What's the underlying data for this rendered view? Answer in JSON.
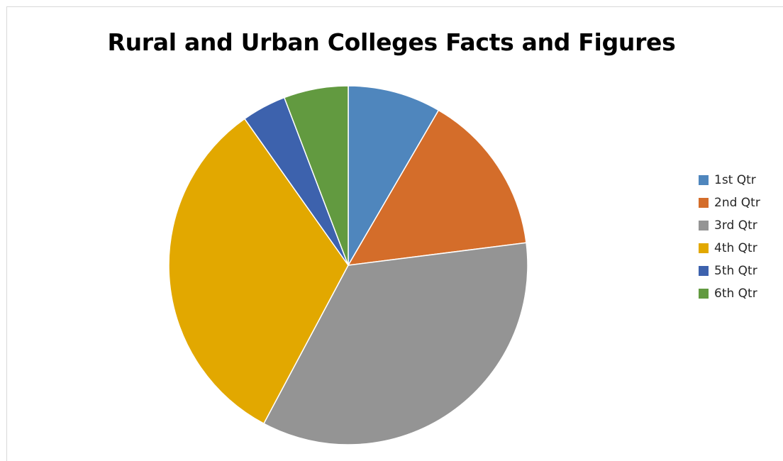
{
  "chart_data": {
    "type": "pie",
    "title": "Rural and Urban Colleges Facts and Figures",
    "categories": [
      "1st Qtr",
      "2nd Qtr",
      "3rd Qtr",
      "4th Qtr",
      "5th Qtr",
      "6th Qtr"
    ],
    "values": [
      8.4,
      14.6,
      34.8,
      32.4,
      4.0,
      5.8
    ],
    "colors": [
      "#4f86bd",
      "#d46d2a",
      "#949494",
      "#e2a800",
      "#3d62ad",
      "#629a40"
    ],
    "legend_position": "right",
    "start_angle": "top (12 o'clock)",
    "direction": "clockwise"
  }
}
